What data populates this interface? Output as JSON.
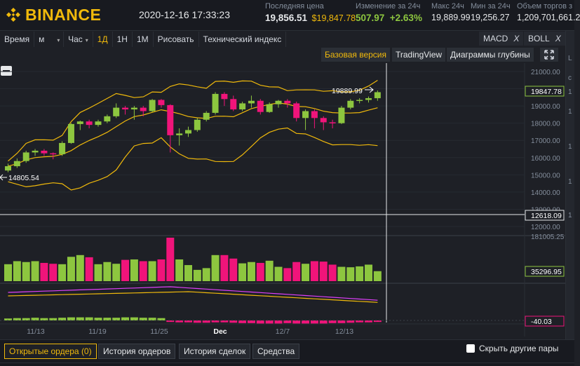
{
  "header": {
    "brand": "BINANCE",
    "datetime": "2020-12-16 17:33:23",
    "stats": [
      {
        "label": "Последняя цена",
        "value": "19,856.51",
        "value2": "$19,847.78"
      },
      {
        "label": "Изменение за 24ч",
        "value": "507.97",
        "value2": "+2.63%"
      },
      {
        "label": "Макс 24ч",
        "value": "19,889.99"
      },
      {
        "label": "Мин за 24ч",
        "value": "19,256.27"
      },
      {
        "label": "Объем торгов з",
        "value": "1,209,701,661.2"
      }
    ],
    "colors": {
      "brand": "#f0b90b",
      "up": "#8dc63f",
      "down": "#f0147a",
      "text": "#e6e8ea"
    }
  },
  "toolbar": {
    "items": [
      {
        "label": "Время"
      },
      {
        "label": "м",
        "dropdown": true
      },
      {
        "label": "Час",
        "dropdown": true
      },
      {
        "label": "1Д",
        "active": true
      },
      {
        "label": "1Н"
      },
      {
        "label": "1М"
      },
      {
        "label": "Рисовать"
      },
      {
        "label": "Технический индекс"
      }
    ],
    "indicators": [
      {
        "label": "MACD",
        "close": "X"
      },
      {
        "label": "BOLL",
        "close": "X"
      }
    ]
  },
  "views": [
    {
      "label": "Базовая версия",
      "active": true
    },
    {
      "label": "TradingView"
    },
    {
      "label": "Диаграммы глубины"
    }
  ],
  "chart_data": {
    "type": "candlestick",
    "price_ticks": [
      "21000.00",
      "20000.00",
      "19000.00",
      "18000.00",
      "17000.00",
      "16000.00",
      "15000.00",
      "14000.00",
      "13000.00",
      "12000.00"
    ],
    "current_price_label": "19847.78",
    "crosshair_price_label": "12618.09",
    "high_label": "19889.99",
    "low_label": "14805.54",
    "volume_max_label": "181005.25",
    "volume_label": "35296.95",
    "macd_label": "-40.03",
    "x_labels": [
      "11/13",
      "11/19",
      "11/25",
      "Dec",
      "12/7",
      "12/13"
    ],
    "candles": [
      [
        15250,
        15500,
        15150,
        15650
      ],
      [
        15500,
        15800,
        15400,
        15950
      ],
      [
        15800,
        16300,
        15700,
        16400
      ],
      [
        16300,
        16400,
        16100,
        16500
      ],
      [
        16400,
        16250,
        16100,
        16500
      ],
      [
        16250,
        16200,
        15900,
        16300
      ],
      [
        16200,
        16850,
        16100,
        16950
      ],
      [
        16850,
        17950,
        16800,
        18000
      ],
      [
        17950,
        18100,
        17600,
        18150
      ],
      [
        18100,
        17900,
        17700,
        18200
      ],
      [
        17900,
        18100,
        17800,
        18200
      ],
      [
        18100,
        18400,
        18000,
        18500
      ],
      [
        18400,
        18900,
        18300,
        19150
      ],
      [
        18900,
        18800,
        18500,
        19000
      ],
      [
        18800,
        18900,
        18200,
        19000
      ],
      [
        18900,
        18700,
        18400,
        19000
      ],
      [
        18700,
        19350,
        18650,
        19400
      ],
      [
        19350,
        19050,
        18900,
        19400
      ],
      [
        19050,
        17300,
        16300,
        19100
      ],
      [
        17300,
        17400,
        16700,
        17700
      ],
      [
        17400,
        17600,
        17200,
        17800
      ],
      [
        17600,
        18200,
        17500,
        18300
      ],
      [
        18200,
        18600,
        18100,
        18700
      ],
      [
        18600,
        19700,
        18500,
        19800
      ],
      [
        19700,
        19400,
        19000,
        19800
      ],
      [
        19400,
        18800,
        18700,
        19600
      ],
      [
        18800,
        19150,
        18700,
        19250
      ],
      [
        19150,
        19300,
        18900,
        19600
      ],
      [
        19300,
        18650,
        18500,
        19400
      ],
      [
        18650,
        19100,
        18600,
        19200
      ],
      [
        19100,
        19300,
        18900,
        19350
      ],
      [
        19300,
        19150,
        18900,
        19400
      ],
      [
        19150,
        18300,
        18100,
        19250
      ],
      [
        18300,
        18700,
        17600,
        18800
      ],
      [
        18700,
        18300,
        17700,
        18800
      ],
      [
        18300,
        18050,
        17600,
        18400
      ],
      [
        18050,
        18000,
        17700,
        18200
      ],
      [
        18000,
        18900,
        17950,
        19000
      ],
      [
        18900,
        19300,
        18800,
        19400
      ],
      [
        19300,
        19350,
        19150,
        19450
      ],
      [
        19350,
        19450,
        19200,
        19550
      ],
      [
        19450,
        19800,
        19300,
        19900
      ]
    ],
    "volumes": [
      39,
      46,
      44,
      46,
      42,
      40,
      39,
      56,
      60,
      55,
      39,
      44,
      40,
      49,
      50,
      46,
      46,
      50,
      100,
      50,
      37,
      26,
      30,
      60,
      60,
      52,
      41,
      44,
      42,
      47,
      33,
      30,
      44,
      40,
      46,
      45,
      38,
      33,
      32,
      34,
      38,
      23
    ],
    "macd_hist": [
      5,
      6,
      6,
      7,
      6,
      6,
      7,
      8,
      8,
      8,
      7,
      7,
      7,
      8,
      8,
      7,
      7,
      6,
      -4,
      -5,
      -5,
      -6,
      -6,
      -5,
      -5,
      -6,
      -7,
      -7,
      -8,
      -8,
      -8,
      -7,
      -8,
      -8,
      -8,
      -8,
      -7,
      -7,
      -6,
      -5,
      -5,
      -4
    ]
  },
  "bottom": {
    "tabs": [
      {
        "label": "Открытые ордера (0)",
        "active": true
      },
      {
        "label": "История ордеров"
      },
      {
        "label": "История сделок"
      },
      {
        "label": "Средства"
      }
    ],
    "hide_pairs_label": "Скрыть другие пары"
  },
  "rightstrip": {
    "labels": [
      "L",
      "c",
      "1",
      "1",
      "1",
      "1",
      "1"
    ]
  }
}
